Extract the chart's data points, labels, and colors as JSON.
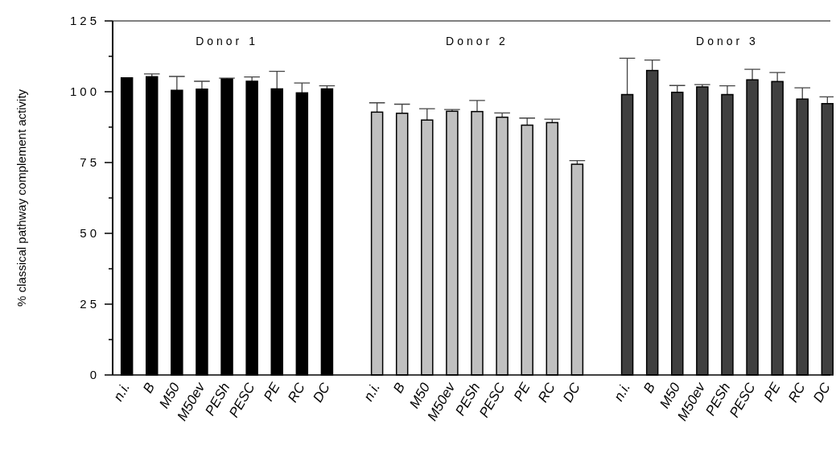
{
  "chart_data": {
    "type": "bar",
    "ylabel": "% classical pathway complement activity",
    "annotations": [
      "Donor 1",
      "Donor 2",
      "Donor 3"
    ],
    "categories": [
      "n.i.",
      "B",
      "M50",
      "M50ev",
      "PESh",
      "PESC",
      "PE",
      "RC",
      "DC",
      null,
      "n.i.",
      "B",
      "M50",
      "M50ev",
      "PESh",
      "PESC",
      "PE",
      "RC",
      "DC",
      null,
      "n.i.",
      "B",
      "M50",
      "M50ev",
      "PESh",
      "PESC",
      "PE",
      "RC",
      "DC"
    ],
    "series": [
      {
        "color": "#000000",
        "values": [
          104.9,
          105.3,
          100.5,
          100.9,
          104.5,
          103.7,
          101.0,
          99.6,
          101.0,
          null,
          null,
          null,
          null,
          null,
          null,
          null,
          null,
          null,
          null,
          null,
          null,
          null,
          null,
          null,
          null,
          null,
          null,
          null,
          null
        ],
        "errors": [
          null,
          [
            105.3,
            106.3
          ],
          [
            100.5,
            105.4
          ],
          [
            100.9,
            103.7
          ],
          [
            104.5,
            104.8
          ],
          [
            103.7,
            105.2
          ],
          [
            101.0,
            107.2
          ],
          [
            99.6,
            103.1
          ],
          [
            101.0,
            102.1
          ],
          null,
          null,
          null,
          null,
          null,
          null,
          null,
          null,
          null,
          null,
          null,
          null,
          null,
          null,
          null,
          null,
          null,
          null,
          null,
          null
        ]
      },
      {
        "color": "#c0c0c0",
        "values": [
          null,
          null,
          null,
          null,
          null,
          null,
          null,
          null,
          null,
          null,
          92.8,
          92.4,
          90.0,
          93.1,
          93.0,
          91.0,
          88.2,
          89.1,
          74.4,
          null,
          null,
          null,
          null,
          null,
          null,
          null,
          null,
          null,
          null
        ],
        "errors": [
          null,
          null,
          null,
          null,
          null,
          null,
          null,
          null,
          null,
          null,
          [
            92.8,
            96.1
          ],
          [
            92.4,
            95.6
          ],
          [
            90.0,
            94.0
          ],
          [
            93.1,
            93.7
          ],
          [
            93.0,
            96.9
          ],
          [
            91.0,
            92.5
          ],
          [
            88.2,
            90.7
          ],
          [
            89.1,
            90.3
          ],
          [
            74.4,
            75.7
          ],
          null,
          null,
          null,
          null,
          null,
          null,
          null,
          null,
          null,
          null
        ]
      },
      {
        "color": "#404040",
        "values": [
          null,
          null,
          null,
          null,
          null,
          null,
          null,
          null,
          null,
          null,
          null,
          null,
          null,
          null,
          null,
          null,
          null,
          null,
          null,
          null,
          99.0,
          107.5,
          99.8,
          101.7,
          99.0,
          104.2,
          103.6,
          97.4,
          95.8
        ],
        "errors": [
          null,
          null,
          null,
          null,
          null,
          null,
          null,
          null,
          null,
          null,
          null,
          null,
          null,
          null,
          null,
          null,
          null,
          null,
          null,
          null,
          [
            99.0,
            111.8
          ],
          [
            107.5,
            111.2
          ],
          [
            99.8,
            102.2
          ],
          [
            101.7,
            102.5
          ],
          [
            99.0,
            102.1
          ],
          [
            104.2,
            107.9
          ],
          [
            103.6,
            106.8
          ],
          [
            97.4,
            101.4
          ],
          [
            95.8,
            98.2
          ]
        ]
      }
    ],
    "ylim": [
      0,
      125
    ],
    "yticks": [
      0,
      {
        "value": 12.5,
        "label": null
      },
      25,
      {
        "value": 37.5,
        "label": null
      },
      50,
      {
        "value": 62.5,
        "label": null
      },
      75,
      {
        "value": 87.5,
        "label": null
      },
      100,
      {
        "value": 112.5,
        "label": null
      },
      125
    ],
    "grid": false
  }
}
